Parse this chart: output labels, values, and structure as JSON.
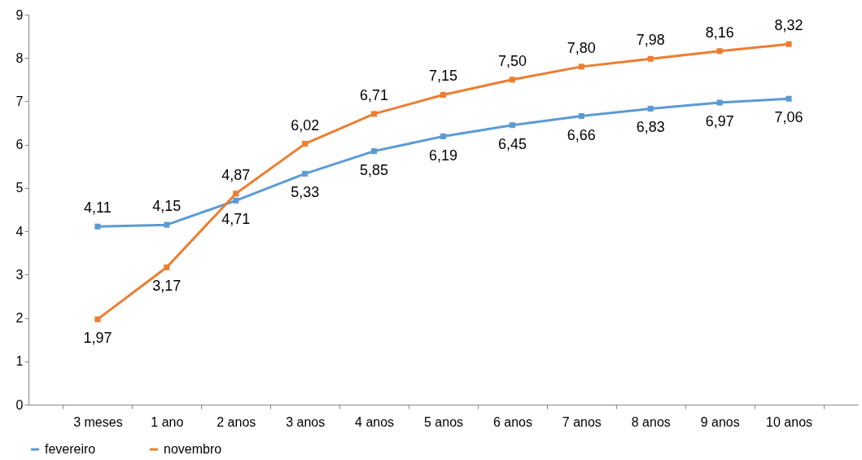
{
  "chart_data": {
    "type": "line",
    "categories": [
      "3 meses",
      "1 ano",
      "2 anos",
      "3 anos",
      "4 anos",
      "5 anos",
      "6 anos",
      "7 anos",
      "8 anos",
      "9 anos",
      "10 anos"
    ],
    "series": [
      {
        "name": "fevereiro",
        "color": "#5b9bd5",
        "values": [
          4.11,
          4.15,
          4.71,
          5.33,
          5.85,
          6.19,
          6.45,
          6.66,
          6.83,
          6.97,
          7.06
        ],
        "value_labels": [
          "4,11",
          "4,15",
          "4,71",
          "5,33",
          "5,85",
          "6,19",
          "6,45",
          "6,66",
          "6,83",
          "6,97",
          "7,06"
        ]
      },
      {
        "name": "novembro",
        "color": "#ed7d31",
        "values": [
          1.97,
          3.17,
          4.87,
          6.02,
          6.71,
          7.15,
          7.5,
          7.8,
          7.98,
          8.16,
          8.32
        ],
        "value_labels": [
          "1,97",
          "3,17",
          "4,87",
          "6,02",
          "6,71",
          "7,15",
          "7,50",
          "7,80",
          "7,98",
          "8,16",
          "8,32"
        ]
      }
    ],
    "ylim": [
      0,
      9
    ],
    "yticks": [
      0,
      1,
      2,
      3,
      4,
      5,
      6,
      7,
      8,
      9
    ],
    "grid": false,
    "legend": "bottom",
    "marker": "square",
    "line_style": "solid"
  }
}
